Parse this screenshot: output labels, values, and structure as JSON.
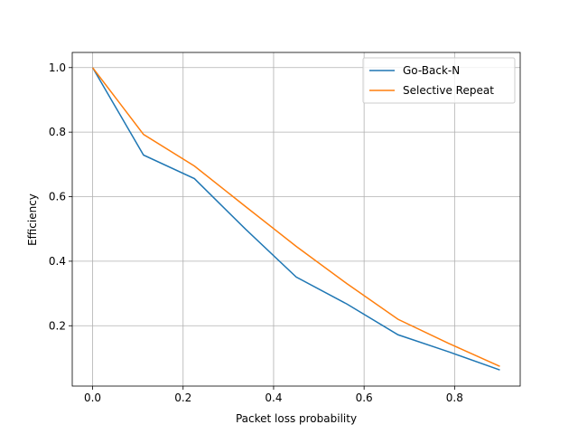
{
  "chart_data": {
    "type": "line",
    "x_label": "Packet loss probability",
    "y_label": "Efficiency",
    "x": [
      0,
      0.1125,
      0.225,
      0.3375,
      0.45,
      0.5625,
      0.675,
      0.7875,
      0.9
    ],
    "series": [
      {
        "name": "Go-Back-N",
        "color": "#1f77b4",
        "values": [
          1.0,
          0.729,
          0.656,
          0.5,
          0.351,
          0.267,
          0.172,
          0.119,
          0.063
        ]
      },
      {
        "name": "Selective Repeat",
        "color": "#ff7f0e",
        "values": [
          1.0,
          0.793,
          0.695,
          0.57,
          0.446,
          0.33,
          0.22,
          0.145,
          0.074
        ]
      }
    ],
    "xlim": [
      -0.045,
      0.945
    ],
    "ylim": [
      0.013,
      1.047
    ],
    "xticks": [
      {
        "value": 0,
        "label": "0.0"
      },
      0.2,
      0.4,
      0.6,
      0.8
    ],
    "yticks": [
      0.2,
      0.4,
      0.6,
      0.8,
      {
        "value": 1,
        "label": "1.0"
      }
    ],
    "grid": true,
    "legend": "upper right"
  }
}
